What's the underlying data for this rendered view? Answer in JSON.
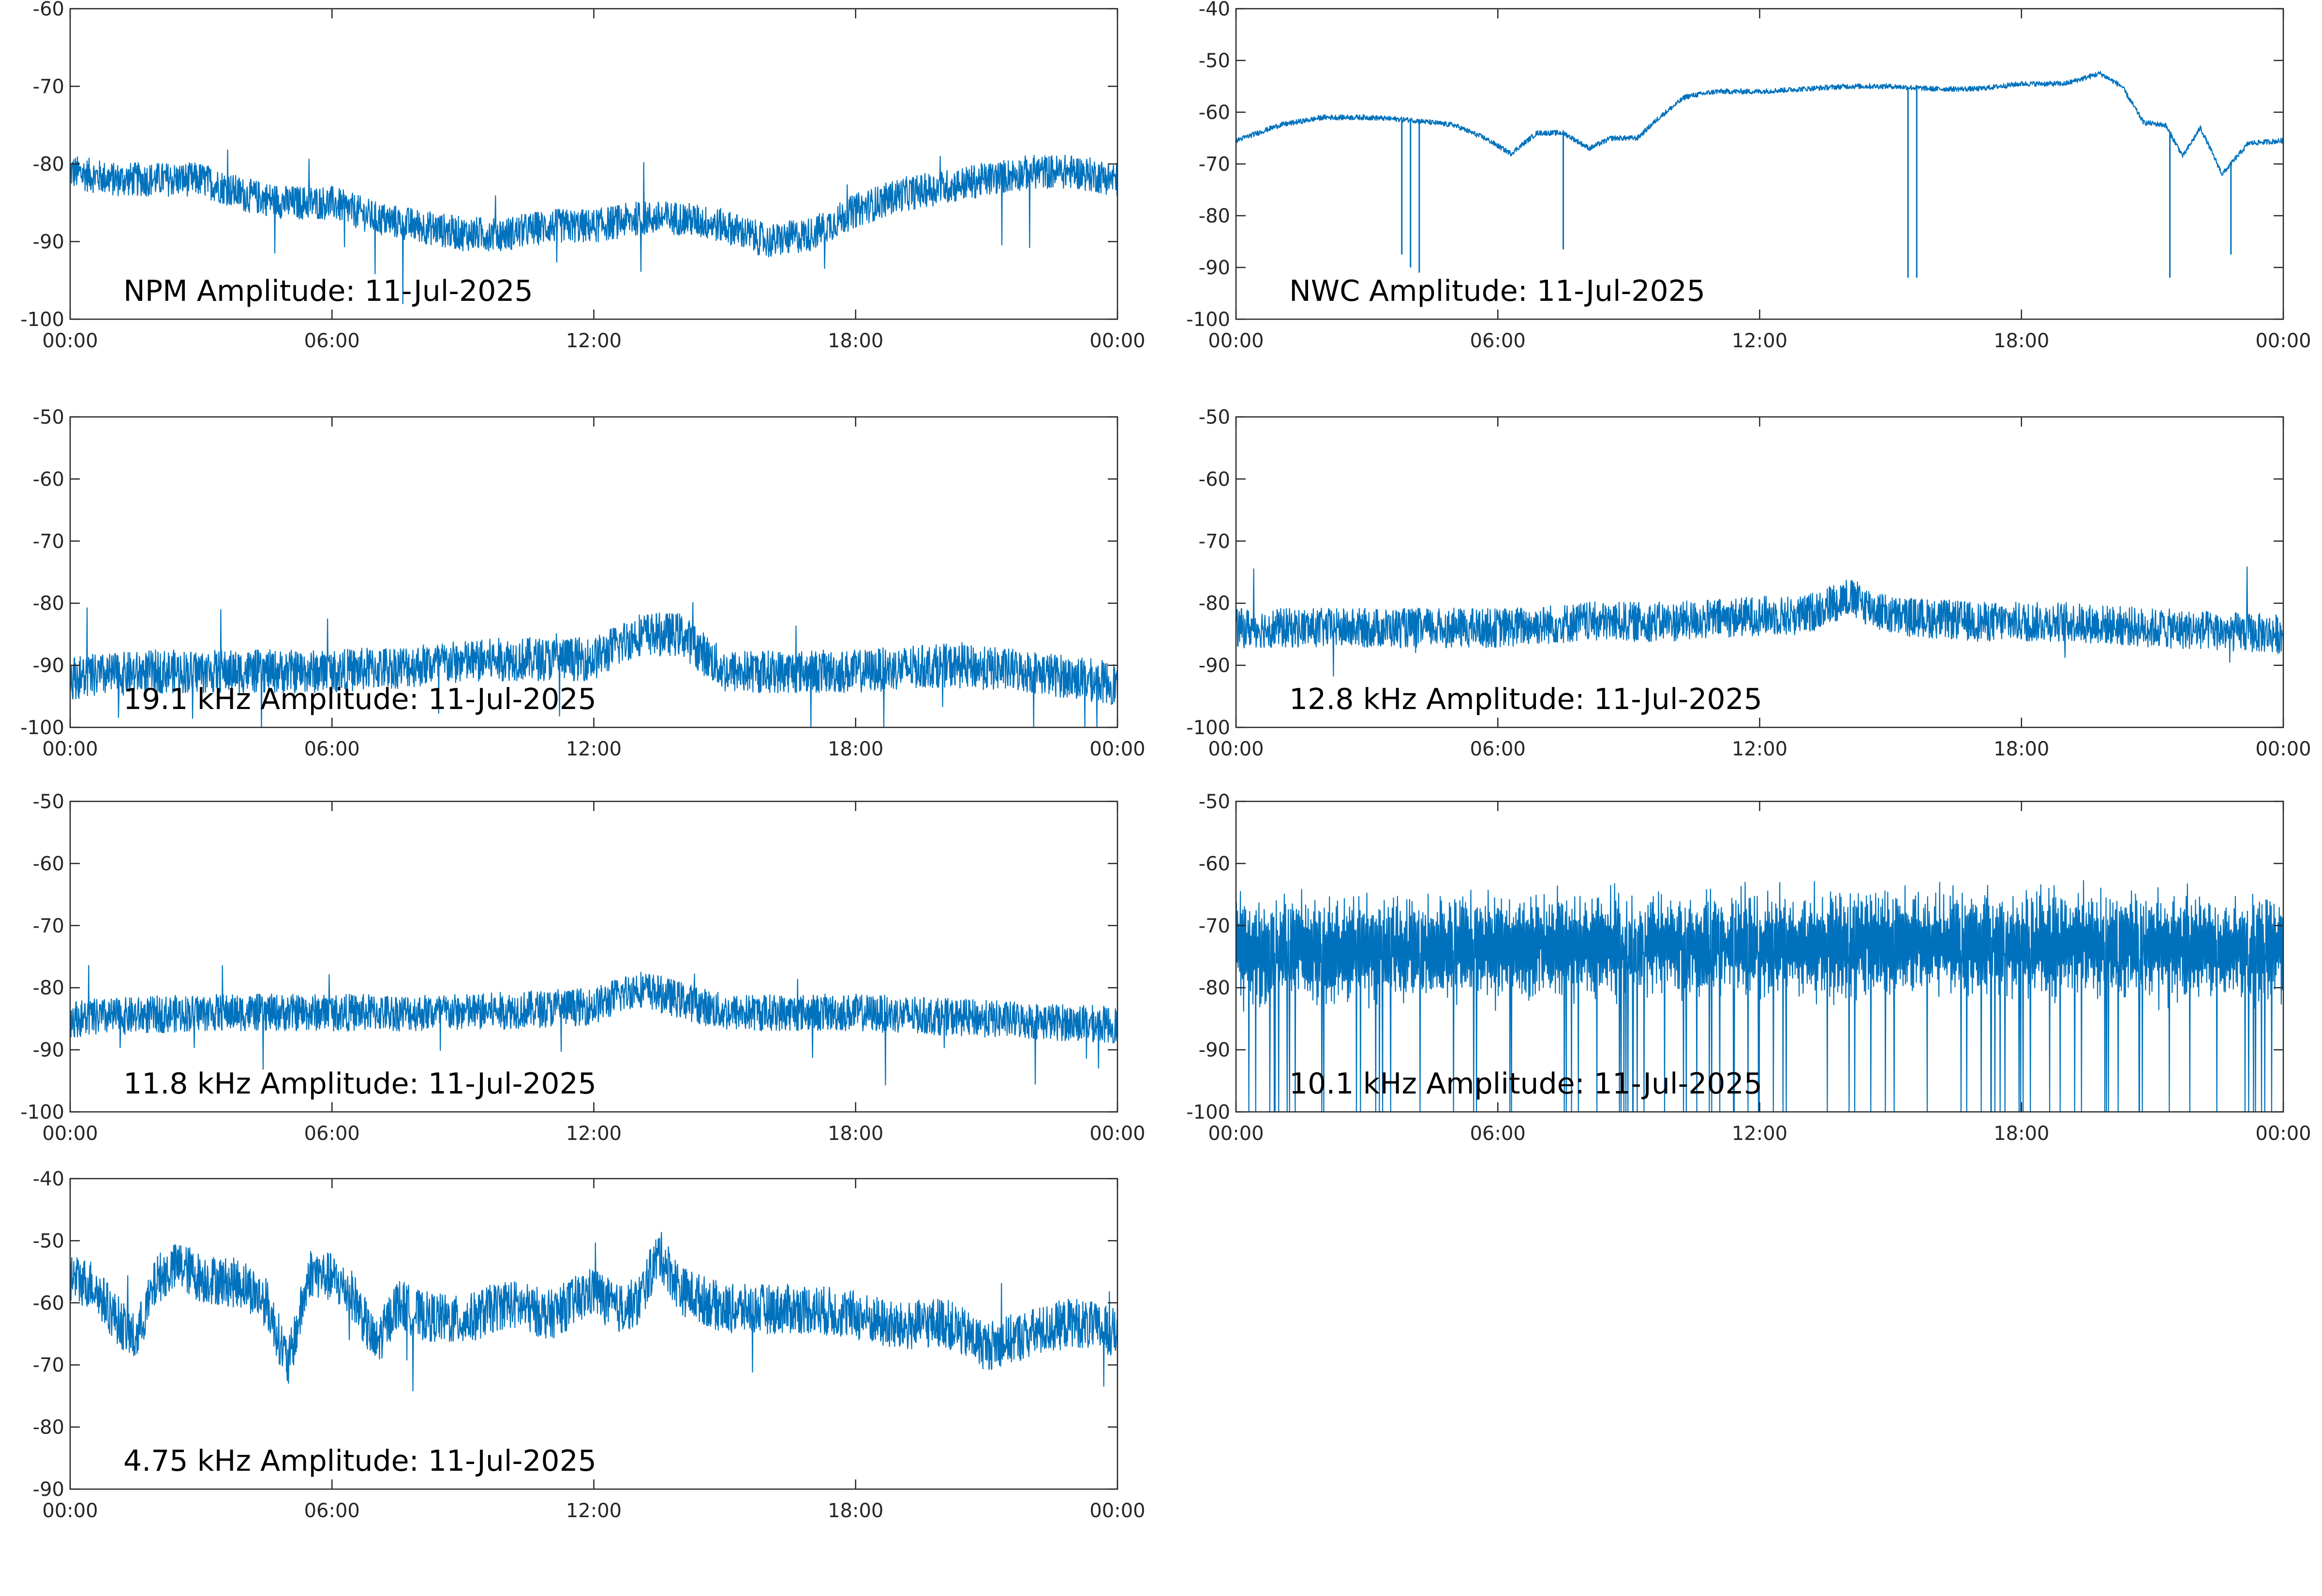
{
  "chart_data": [
    {
      "type": "line",
      "title": "NPM Amplitude: 11-Jul-2025",
      "ylim": [
        -100,
        -60
      ],
      "y_ticks": [
        "-60",
        "-70",
        "-80",
        "-90",
        "-100"
      ],
      "x_ticks": [
        "00:00",
        "06:00",
        "12:00",
        "18:00",
        "00:00"
      ],
      "xlim_hours": [
        0,
        24
      ],
      "series": [
        {
          "color": "#0072bd",
          "x_hours": [
            0,
            1,
            2,
            3,
            4,
            5,
            6,
            7,
            8,
            9,
            10,
            11,
            12,
            13,
            14,
            15,
            16,
            17,
            18,
            19,
            20,
            21,
            22,
            23,
            24
          ],
          "values": [
            -81,
            -82,
            -82,
            -82,
            -84,
            -85,
            -85,
            -87,
            -88,
            -89,
            -89,
            -88,
            -88,
            -87,
            -87,
            -88,
            -90,
            -89,
            -86,
            -84,
            -83,
            -82,
            -81,
            -81,
            -82
          ]
        }
      ]
    },
    {
      "type": "line",
      "title": "NWC Amplitude: 11-Jul-2025",
      "ylim": [
        -100,
        -40
      ],
      "y_ticks": [
        "-40",
        "-50",
        "-60",
        "-70",
        "-80",
        "-90",
        "-100"
      ],
      "x_ticks": [
        "00:00",
        "06:00",
        "12:00",
        "18:00",
        "00:00"
      ],
      "xlim_hours": [
        0,
        24
      ],
      "series": [
        {
          "color": "#0072bd",
          "x_hours": [
            0,
            1,
            2,
            3,
            4,
            5,
            5.7,
            6.3,
            6.9,
            7.5,
            8.1,
            8.6,
            9.2,
            9.7,
            10.3,
            11,
            12,
            13,
            14,
            15,
            16,
            17,
            18,
            19,
            19.8,
            20.3,
            20.8,
            21.3,
            21.7,
            22.1,
            22.6,
            23.2,
            24
          ],
          "values": [
            -65.5,
            -62.5,
            -61,
            -61,
            -61.5,
            -62.5,
            -65,
            -68,
            -64,
            -64,
            -67,
            -65,
            -65,
            -61,
            -57,
            -56,
            -56,
            -55.5,
            -55,
            -55,
            -55.5,
            -55.5,
            -54.5,
            -54.5,
            -52.5,
            -55,
            -62,
            -62.5,
            -68.5,
            -63,
            -72,
            -66,
            -65.5
          ]
        }
      ]
    },
    {
      "type": "line",
      "title": "19.1 kHz Amplitude: 11-Jul-2025",
      "ylim": [
        -100,
        -50
      ],
      "y_ticks": [
        "-50",
        "-60",
        "-70",
        "-80",
        "-90",
        "-100"
      ],
      "x_ticks": [
        "00:00",
        "06:00",
        "12:00",
        "18:00",
        "00:00"
      ],
      "xlim_hours": [
        0,
        24
      ],
      "series": [
        {
          "color": "#0072bd",
          "x_hours": [
            0,
            2,
            4,
            6,
            8,
            10,
            12,
            13,
            14,
            15,
            16,
            18,
            20,
            22,
            24
          ],
          "values": [
            -92,
            -91,
            -91,
            -91,
            -90,
            -89,
            -89,
            -85,
            -85,
            -91,
            -91,
            -91,
            -90,
            -91,
            -93
          ]
        }
      ]
    },
    {
      "type": "line",
      "title": "12.8 kHz Amplitude: 11-Jul-2025",
      "ylim": [
        -100,
        -50
      ],
      "y_ticks": [
        "-50",
        "-60",
        "-70",
        "-80",
        "-90",
        "-100"
      ],
      "x_ticks": [
        "00:00",
        "06:00",
        "12:00",
        "18:00",
        "00:00"
      ],
      "xlim_hours": [
        0,
        24
      ],
      "series": [
        {
          "color": "#0072bd",
          "x_hours": [
            0,
            3,
            6,
            8,
            10,
            12,
            13,
            14,
            15,
            17,
            19,
            21,
            24
          ],
          "values": [
            -84,
            -84,
            -84,
            -83,
            -83,
            -82,
            -82,
            -79,
            -82,
            -83,
            -83,
            -84,
            -85
          ]
        }
      ]
    },
    {
      "type": "line",
      "title": "11.8 kHz Amplitude: 11-Jul-2025",
      "ylim": [
        -100,
        -50
      ],
      "y_ticks": [
        "-50",
        "-60",
        "-70",
        "-80",
        "-90",
        "-100"
      ],
      "x_ticks": [
        "00:00",
        "06:00",
        "12:00",
        "18:00",
        "00:00"
      ],
      "xlim_hours": [
        0,
        24
      ],
      "series": [
        {
          "color": "#0072bd",
          "x_hours": [
            0,
            3,
            6,
            9,
            12,
            13,
            14,
            15,
            18,
            21,
            24
          ],
          "values": [
            -85,
            -84,
            -84,
            -84,
            -83,
            -80,
            -82,
            -84,
            -84,
            -85,
            -86
          ]
        }
      ]
    },
    {
      "type": "line",
      "title": "10.1 kHz Amplitude: 11-Jul-2025",
      "ylim": [
        -100,
        -50
      ],
      "y_ticks": [
        "-50",
        "-60",
        "-70",
        "-80",
        "-90",
        "-100"
      ],
      "x_ticks": [
        "00:00",
        "06:00",
        "12:00",
        "18:00",
        "00:00"
      ],
      "xlim_hours": [
        0,
        24
      ],
      "series": [
        {
          "color": "#0072bd",
          "x_hours": [
            0,
            4,
            8,
            12,
            16,
            20,
            24
          ],
          "values": [
            -74,
            -74,
            -73,
            -73,
            -73,
            -73,
            -74
          ]
        }
      ]
    },
    {
      "type": "line",
      "title": "4.75 kHz Amplitude: 11-Jul-2025",
      "ylim": [
        -90,
        -40
      ],
      "y_ticks": [
        "-40",
        "-50",
        "-60",
        "-70",
        "-80",
        "-90"
      ],
      "x_ticks": [
        "00:00",
        "06:00",
        "12:00",
        "18:00",
        "00:00"
      ],
      "xlim_hours": [
        0,
        24
      ],
      "series": [
        {
          "color": "#0072bd",
          "x_hours": [
            0,
            0.5,
            1,
            1.5,
            2,
            2.5,
            3,
            4,
            4.5,
            5,
            5.5,
            6,
            6.5,
            7,
            7.5,
            8,
            9,
            10,
            11,
            12,
            12.5,
            13,
            13.5,
            14,
            15,
            16,
            17,
            18,
            19,
            20,
            21,
            22,
            23,
            24
          ],
          "values": [
            -56,
            -57,
            -62,
            -66,
            -56,
            -54,
            -56,
            -57,
            -60,
            -70,
            -55,
            -56,
            -59,
            -67,
            -60,
            -62,
            -63,
            -60,
            -62,
            -58,
            -61,
            -60,
            -52,
            -58,
            -61,
            -61,
            -61,
            -62,
            -64,
            -63,
            -67,
            -65,
            -63,
            -65
          ]
        }
      ]
    }
  ]
}
